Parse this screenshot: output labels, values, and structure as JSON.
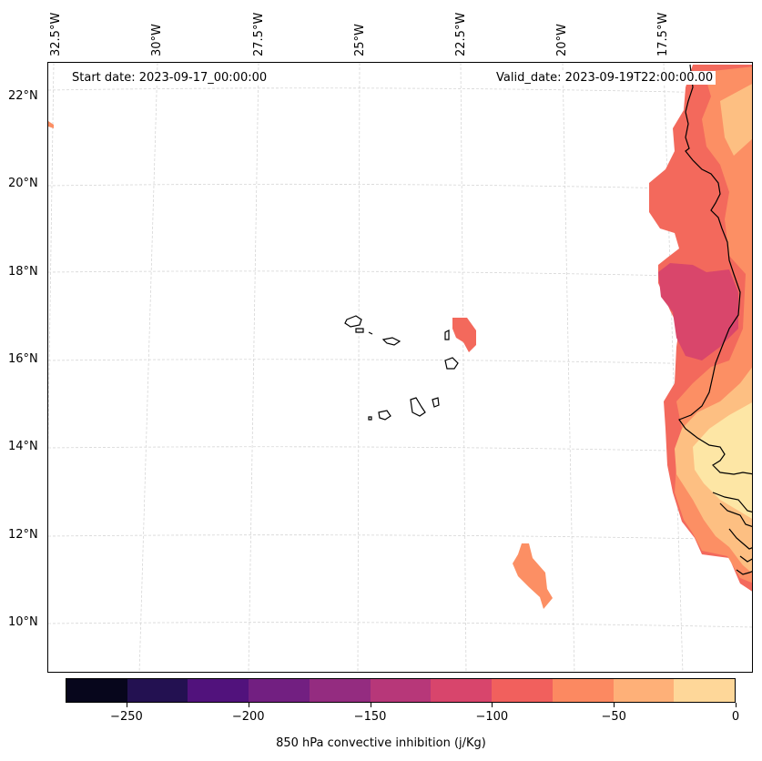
{
  "map": {
    "start_date": "Start date: 2023-09-17_00:00:00",
    "valid_date": "Valid_date: 2023-09-19T22:00:00.00",
    "lon_labels": [
      "32.5°W",
      "30°W",
      "27.5°W",
      "25°W",
      "22.5°W",
      "20°W",
      "17.5°W"
    ],
    "lat_labels": [
      "22°N",
      "20°N",
      "18°N",
      "16°N",
      "14°N",
      "12°N",
      "10°N"
    ],
    "colors": {
      "coast": "#000000",
      "grid": "#cccccc",
      "cin_m100_m75": "#f3695c",
      "cin_m125_m100": "#d9466b",
      "cin_m75_m50": "#fc8f64",
      "cin_m50_m25": "#fdbf82",
      "cin_m25_0": "#fde6a5"
    }
  },
  "colorbar": {
    "label": "850 hPa convective inhibition (j/Kg)",
    "colors": [
      "#07061c",
      "#231151",
      "#51127c",
      "#721f81",
      "#942c80",
      "#b73779",
      "#d8456c",
      "#f1605d",
      "#fc8961",
      "#feb078",
      "#fed799"
    ],
    "ticks": [
      "−250",
      "−200",
      "−150",
      "−100",
      "−50",
      "0"
    ],
    "tick_values": [
      -250,
      -200,
      -150,
      -100,
      -50,
      0
    ],
    "range": [
      -275,
      0
    ]
  }
}
